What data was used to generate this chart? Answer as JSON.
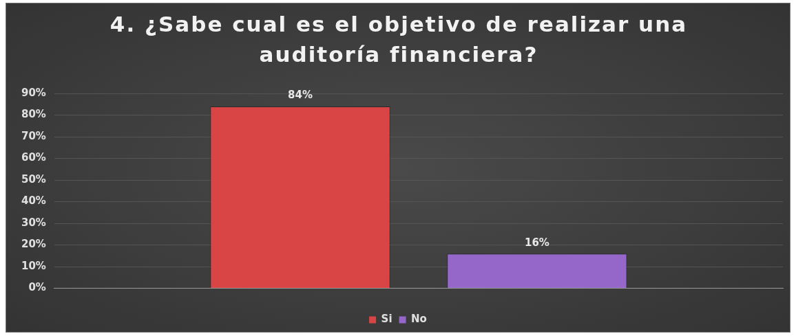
{
  "chart_data": {
    "type": "bar",
    "title": "4. ¿Sabe cual es el objetivo de realizar una auditoría financiera?",
    "categories": [
      null
    ],
    "series": [
      {
        "name": "Si",
        "color": "#d94545",
        "values": [
          84
        ],
        "value_labels": [
          "84%"
        ]
      },
      {
        "name": "No",
        "color": "#9467c9",
        "values": [
          16
        ],
        "value_labels": [
          "16%"
        ]
      }
    ],
    "ylim": [
      0,
      90
    ],
    "yticks": [
      {
        "value": 0,
        "label": "0%"
      },
      {
        "value": 10,
        "label": "10%"
      },
      {
        "value": 20,
        "label": "20%"
      },
      {
        "value": 30,
        "label": "30%"
      },
      {
        "value": 40,
        "label": "40%"
      },
      {
        "value": 50,
        "label": "50%"
      },
      {
        "value": 60,
        "label": "60%"
      },
      {
        "value": 70,
        "label": "70%"
      },
      {
        "value": 80,
        "label": "80%"
      },
      {
        "value": 90,
        "label": "90%"
      }
    ],
    "grid": "y",
    "legend": "bottom"
  }
}
